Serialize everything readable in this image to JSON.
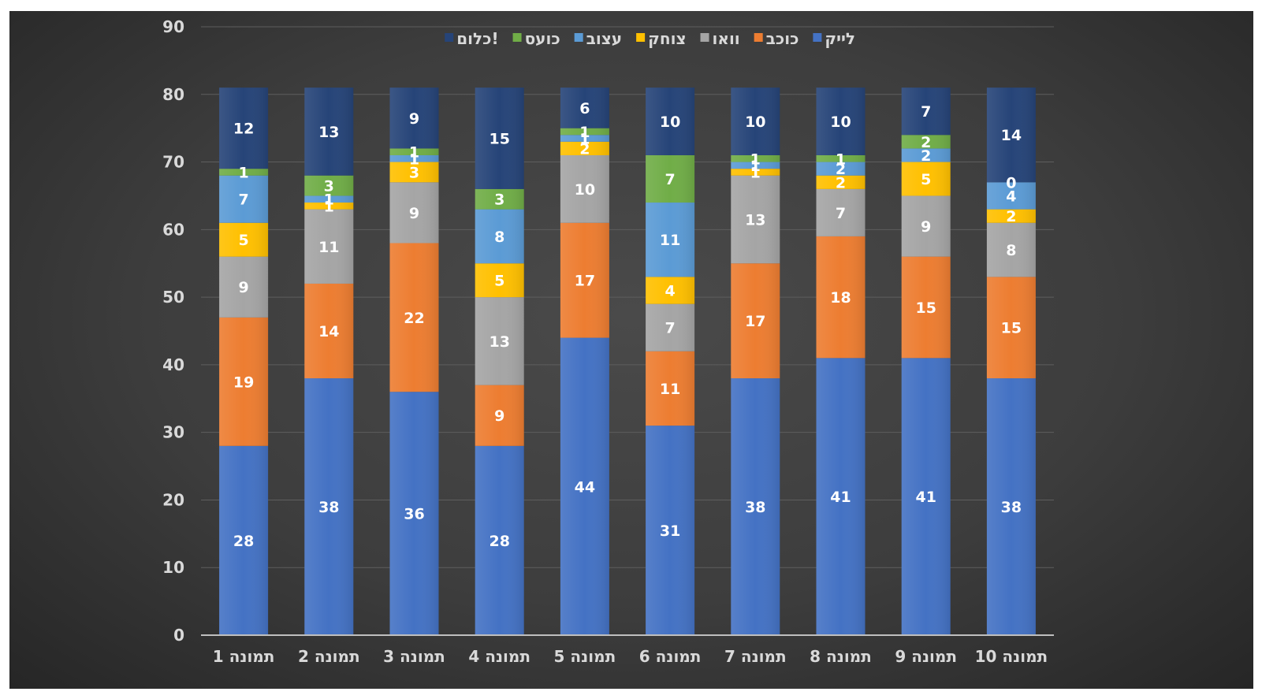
{
  "chart_data": {
    "type": "bar",
    "stacked": true,
    "title": "",
    "xlabel": "",
    "ylabel": "",
    "ylim": [
      0,
      90
    ],
    "yticks": [
      0,
      10,
      20,
      30,
      40,
      50,
      60,
      70,
      80,
      90
    ],
    "grid": true,
    "legend_position": "top",
    "categories": [
      "תמונה 1",
      "תמונה 2",
      "תמונה 3",
      "תמונה 4",
      "תמונה 5",
      "תמונה 6",
      "תמונה 7",
      "תמונה 8",
      "תמונה 9",
      "תמונה 10"
    ],
    "series": [
      {
        "name": "לייק",
        "color": "#4472c4",
        "values": [
          28,
          38,
          36,
          28,
          44,
          31,
          38,
          41,
          41,
          38
        ]
      },
      {
        "name": "כוכב",
        "color": "#ed7d31",
        "values": [
          19,
          14,
          22,
          9,
          17,
          11,
          17,
          18,
          15,
          15
        ]
      },
      {
        "name": "וואו",
        "color": "#a5a5a5",
        "values": [
          9,
          11,
          9,
          13,
          10,
          7,
          13,
          7,
          9,
          8
        ]
      },
      {
        "name": "צוחק",
        "color": "#ffc000",
        "values": [
          5,
          1,
          3,
          5,
          2,
          4,
          1,
          2,
          5,
          2
        ]
      },
      {
        "name": "עצוב",
        "color": "#5b9bd5",
        "values": [
          7,
          1,
          1,
          8,
          1,
          11,
          1,
          2,
          2,
          4
        ]
      },
      {
        "name": "כועס",
        "color": "#70ad47",
        "values": [
          1,
          3,
          1,
          3,
          1,
          7,
          1,
          1,
          2,
          0
        ]
      },
      {
        "name": "כלום!",
        "color": "#264478",
        "values": [
          12,
          13,
          9,
          15,
          6,
          10,
          10,
          10,
          7,
          14
        ]
      }
    ]
  }
}
